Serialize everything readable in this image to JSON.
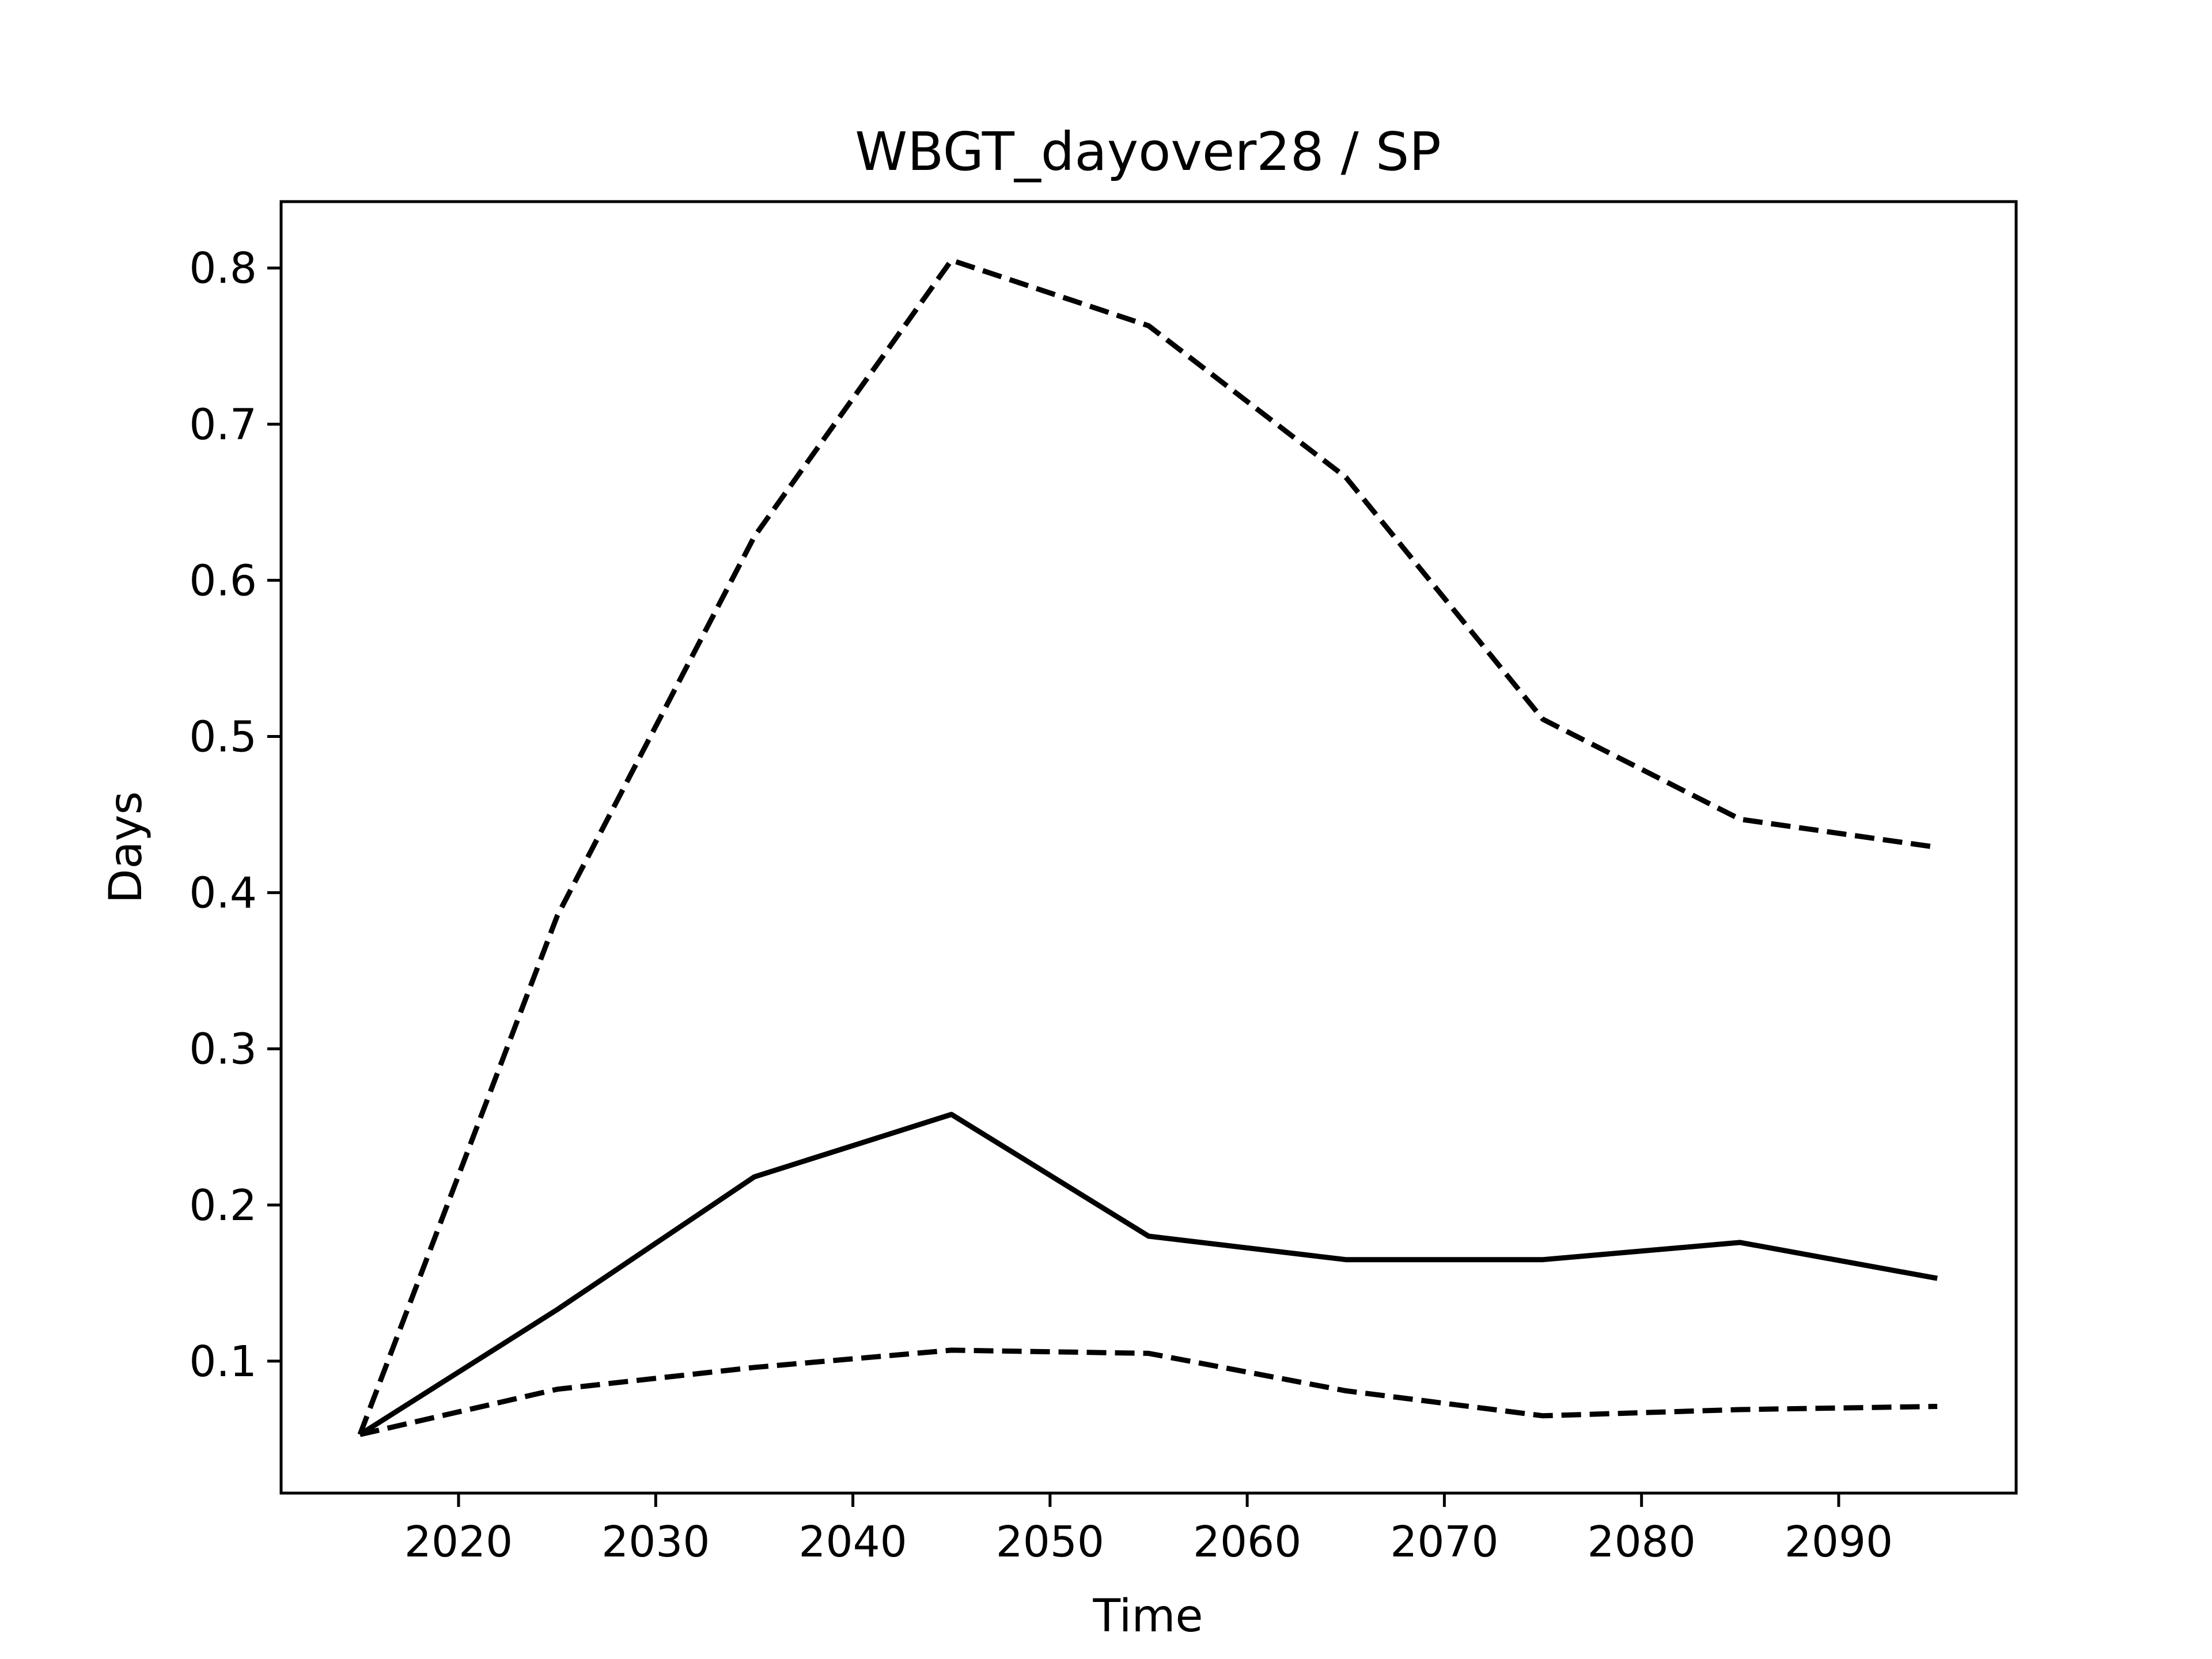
{
  "chart_data": {
    "type": "line",
    "title": "WBGT_dayover28 / SP",
    "xlabel": "Time",
    "ylabel": "Days",
    "xlim": [
      2011,
      2099
    ],
    "ylim": [
      0.0155,
      0.8425
    ],
    "xticks": [
      2020,
      2030,
      2040,
      2050,
      2060,
      2070,
      2080,
      2090
    ],
    "yticks": [
      0.1,
      0.2,
      0.3,
      0.4,
      0.5,
      0.6,
      0.7,
      0.8
    ],
    "grid": false,
    "x": [
      2015,
      2025,
      2035,
      2045,
      2055,
      2065,
      2075,
      2085,
      2095
    ],
    "series": [
      {
        "style": "dashed",
        "color": "#000000",
        "values": [
          0.053,
          0.385,
          0.628,
          0.805,
          0.763,
          0.666,
          0.511,
          0.447,
          0.429
        ]
      },
      {
        "style": "solid",
        "color": "#000000",
        "values": [
          0.053,
          0.133,
          0.218,
          0.258,
          0.18,
          0.165,
          0.165,
          0.176,
          0.153
        ]
      },
      {
        "style": "dashed",
        "color": "#000000",
        "values": [
          0.053,
          0.082,
          0.096,
          0.107,
          0.105,
          0.081,
          0.065,
          0.069,
          0.071
        ]
      }
    ]
  }
}
